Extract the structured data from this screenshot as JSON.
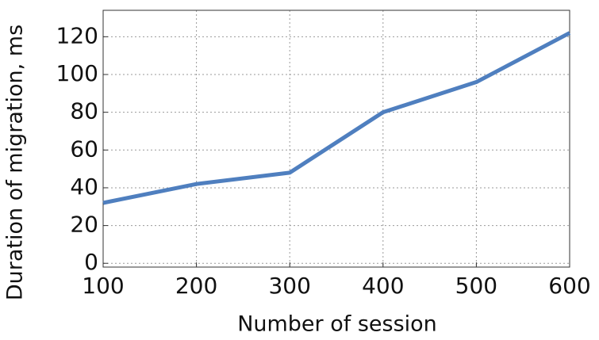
{
  "chart_data": {
    "type": "line",
    "xlabel": "Number of session",
    "ylabel": "Duration of migration, ms",
    "x": [
      100,
      200,
      300,
      400,
      500,
      600
    ],
    "series": [
      {
        "name": "Duration",
        "color": "#4f7fbf",
        "values": [
          32,
          42,
          48,
          80,
          96,
          122
        ]
      }
    ],
    "xlim": [
      100,
      600
    ],
    "xticks": [
      100,
      200,
      300,
      400,
      500,
      600
    ],
    "ylim": [
      -2,
      134
    ],
    "yticks": [
      0,
      20,
      40,
      60,
      80,
      100,
      120
    ],
    "grid": true
  }
}
